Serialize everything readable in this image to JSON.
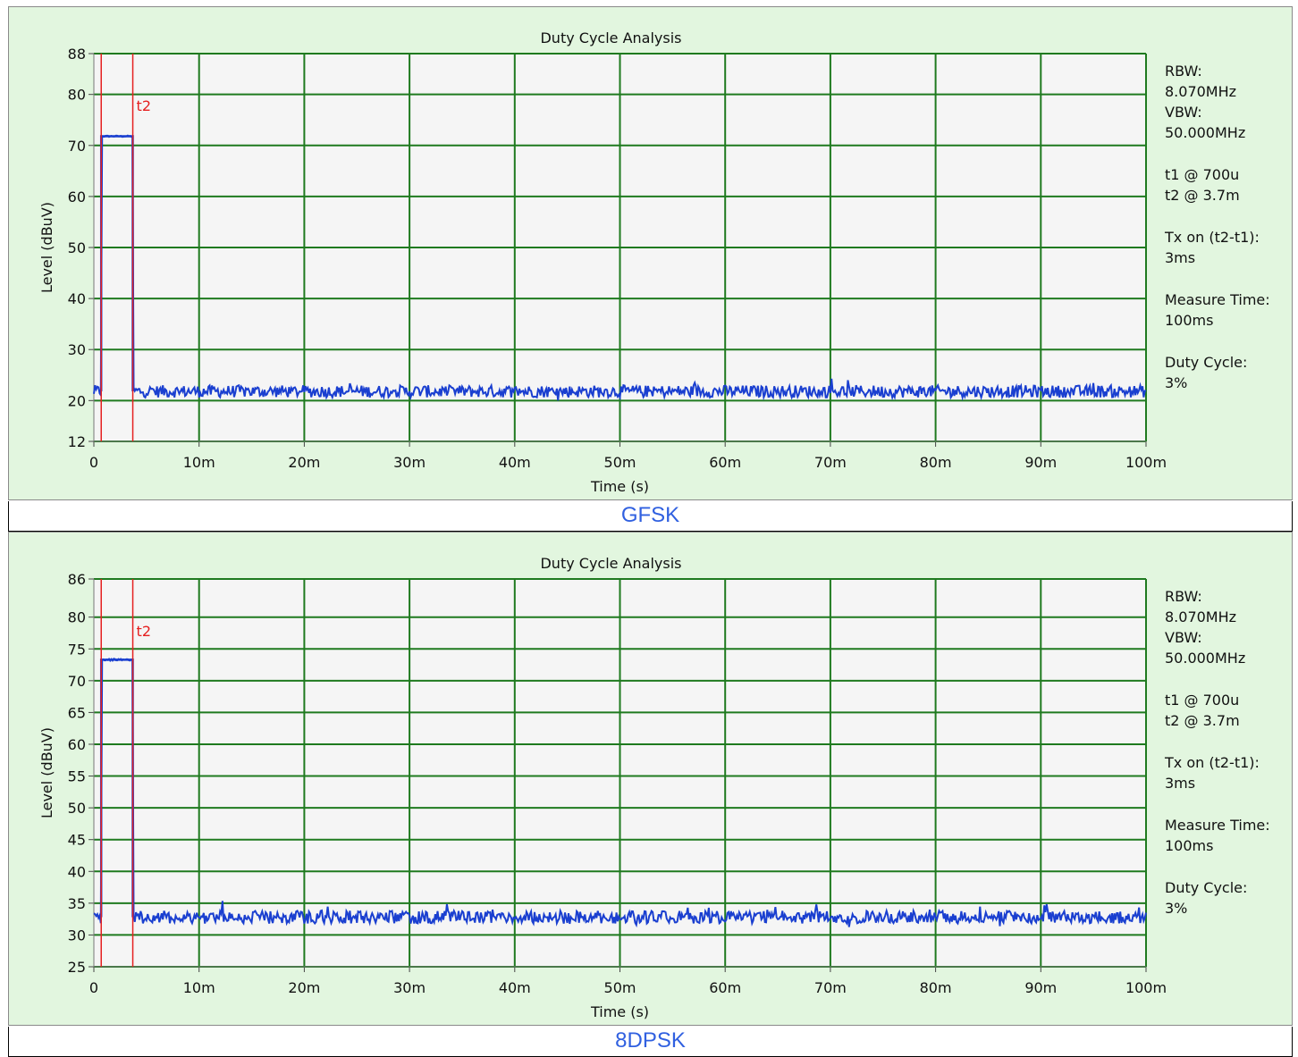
{
  "chart_data": [
    {
      "type": "line",
      "title": "Duty Cycle Analysis",
      "xlabel": "Time (s)",
      "ylabel": "Level (dBuV)",
      "xlim": [
        0,
        0.1
      ],
      "ylim": [
        12,
        88
      ],
      "x_ticks": [
        0,
        0.01,
        0.02,
        0.03,
        0.04,
        0.05,
        0.06,
        0.07,
        0.08,
        0.09,
        0.1
      ],
      "x_tick_labels": [
        "0",
        "10m",
        "20m",
        "30m",
        "40m",
        "50m",
        "60m",
        "70m",
        "80m",
        "90m",
        "100m"
      ],
      "y_ticks": [
        12,
        20,
        30,
        40,
        50,
        60,
        70,
        80,
        88
      ],
      "y_tick_labels": [
        "12",
        "20",
        "30",
        "40",
        "50",
        "60",
        "70",
        "80",
        "88"
      ],
      "grid": true,
      "series": [
        {
          "pulse_start": 0.0007,
          "pulse_end": 0.0037,
          "pulse_level": 71.8,
          "noise_floor": 21.8,
          "noise_amplitude": 1.2,
          "color": "#1a3fd0"
        }
      ],
      "markers": [
        {
          "x": 0.0007,
          "label": ""
        },
        {
          "x": 0.0037,
          "label": "t2"
        }
      ],
      "marker_color": "#e52020",
      "grid_color": "#1f7a1f",
      "plot_bg": "#f5f5f5",
      "info": [
        "RBW:",
        "8.070MHz",
        "VBW:",
        "50.000MHz",
        "",
        "t1 @ 700u",
        "t2 @ 3.7m",
        "",
        "Tx on (t2-t1):",
        "3ms",
        "",
        "Measure Time:",
        "100ms",
        "",
        "Duty Cycle:",
        "3%"
      ],
      "caption": "GFSK"
    },
    {
      "type": "line",
      "title": "Duty Cycle Analysis",
      "xlabel": "Time (s)",
      "ylabel": "Level (dBuV)",
      "xlim": [
        0,
        0.1
      ],
      "ylim": [
        25,
        86
      ],
      "x_ticks": [
        0,
        0.01,
        0.02,
        0.03,
        0.04,
        0.05,
        0.06,
        0.07,
        0.08,
        0.09,
        0.1
      ],
      "x_tick_labels": [
        "0",
        "10m",
        "20m",
        "30m",
        "40m",
        "50m",
        "60m",
        "70m",
        "80m",
        "90m",
        "100m"
      ],
      "y_ticks": [
        25,
        30,
        35,
        40,
        45,
        50,
        55,
        60,
        65,
        70,
        75,
        80,
        86
      ],
      "y_tick_labels": [
        "25",
        "30",
        "35",
        "40",
        "45",
        "50",
        "55",
        "60",
        "65",
        "70",
        "75",
        "80",
        "86"
      ],
      "grid": true,
      "series": [
        {
          "pulse_start": 0.0007,
          "pulse_end": 0.0037,
          "pulse_level": 73.3,
          "noise_floor": 32.8,
          "noise_amplitude": 1.0,
          "color": "#1a3fd0"
        }
      ],
      "markers": [
        {
          "x": 0.0007,
          "label": ""
        },
        {
          "x": 0.0037,
          "label": "t2"
        }
      ],
      "marker_color": "#e52020",
      "grid_color": "#1f7a1f",
      "plot_bg": "#f5f5f5",
      "info": [
        "RBW:",
        "8.070MHz",
        "VBW:",
        "50.000MHz",
        "",
        "t1 @ 700u",
        "t2 @ 3.7m",
        "",
        "Tx on (t2-t1):",
        "3ms",
        "",
        "Measure Time:",
        "100ms",
        "",
        "Duty Cycle:",
        "3%"
      ],
      "caption": "8DPSK"
    }
  ]
}
